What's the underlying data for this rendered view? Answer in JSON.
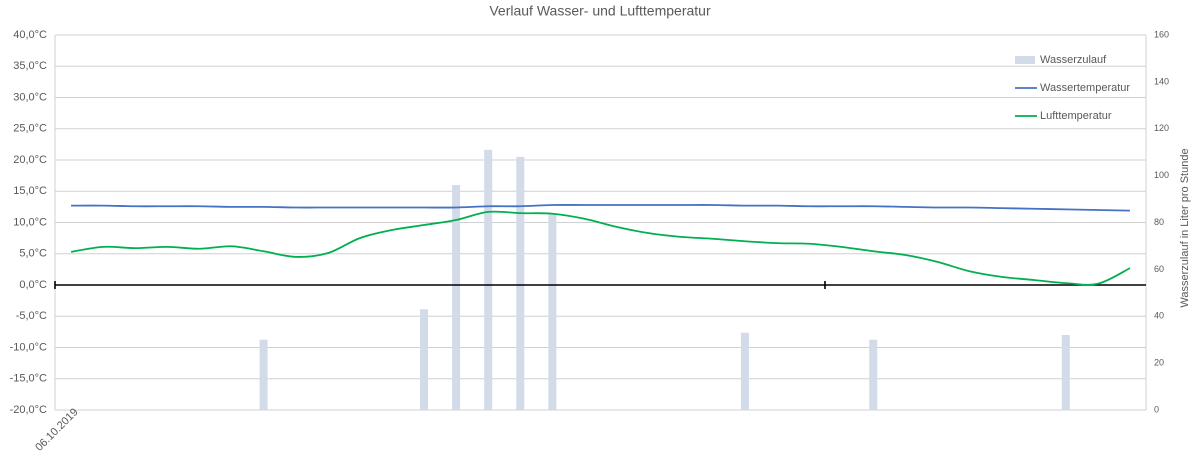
{
  "chart_data": {
    "type": "combo",
    "title": "Verlauf Wasser- und Lufttemperatur",
    "y2_label": "Wasserzulauf in Liter pro Stunde",
    "categories": [
      "06.10.2019",
      null,
      null,
      null,
      null,
      null,
      null,
      null,
      null,
      null,
      null,
      null,
      null,
      null,
      null,
      null,
      null,
      null,
      null,
      null,
      null,
      null,
      null,
      null,
      null,
      null,
      null,
      null,
      null,
      null,
      null,
      null,
      null,
      null
    ],
    "ylim": [
      -20,
      40
    ],
    "yticks": [
      {
        "value": -20,
        "label": "-20,0°C"
      },
      {
        "value": -15,
        "label": "-15,0°C"
      },
      {
        "value": -10,
        "label": "-10,0°C"
      },
      {
        "value": -5,
        "label": "-5,0°C"
      },
      {
        "value": 0,
        "label": "0,0°C"
      },
      {
        "value": 5,
        "label": "5,0°C"
      },
      {
        "value": 10,
        "label": "10,0°C"
      },
      {
        "value": 15,
        "label": "15,0°C"
      },
      {
        "value": 20,
        "label": "20,0°C"
      },
      {
        "value": 25,
        "label": "25,0°C"
      },
      {
        "value": 30,
        "label": "30,0°C"
      },
      {
        "value": 35,
        "label": "35,0°C"
      },
      {
        "value": 40,
        "label": "40,0°C"
      }
    ],
    "y2lim": [
      0,
      160
    ],
    "y2ticks": [
      0,
      20,
      40,
      60,
      80,
      100,
      120,
      140,
      160
    ],
    "grid": true,
    "legend": "top-right",
    "series": [
      {
        "name": "Wasserzulauf",
        "type": "bar",
        "axis": "y2",
        "color": "#d3dbe9",
        "values": [
          null,
          null,
          null,
          null,
          null,
          null,
          30,
          null,
          null,
          null,
          null,
          43,
          96,
          111,
          108,
          84,
          null,
          null,
          null,
          null,
          null,
          33,
          null,
          null,
          null,
          30,
          null,
          null,
          null,
          null,
          null,
          32,
          null,
          null
        ]
      },
      {
        "name": "Wassertemperatur",
        "type": "line",
        "color": "#4472c4",
        "values": [
          12.7,
          12.7,
          12.6,
          12.6,
          12.6,
          12.5,
          12.5,
          12.4,
          12.4,
          12.4,
          12.4,
          12.4,
          12.4,
          12.6,
          12.6,
          12.8,
          12.8,
          12.8,
          12.8,
          12.8,
          12.8,
          12.7,
          12.7,
          12.6,
          12.6,
          12.6,
          12.5,
          12.4,
          12.4,
          12.3,
          12.2,
          12.1,
          12.0,
          11.9
        ]
      },
      {
        "name": "Lufttemperatur",
        "type": "line",
        "color": "#00b050",
        "values": [
          5.3,
          6.1,
          5.9,
          6.1,
          5.8,
          6.2,
          5.4,
          4.5,
          5.1,
          7.5,
          8.8,
          9.6,
          10.4,
          11.7,
          11.5,
          11.4,
          10.6,
          9.3,
          8.3,
          7.7,
          7.4,
          7.0,
          6.7,
          6.6,
          6.1,
          5.4,
          4.8,
          3.7,
          2.2,
          1.3,
          0.8,
          0.3,
          0.2,
          2.7
        ]
      }
    ]
  }
}
